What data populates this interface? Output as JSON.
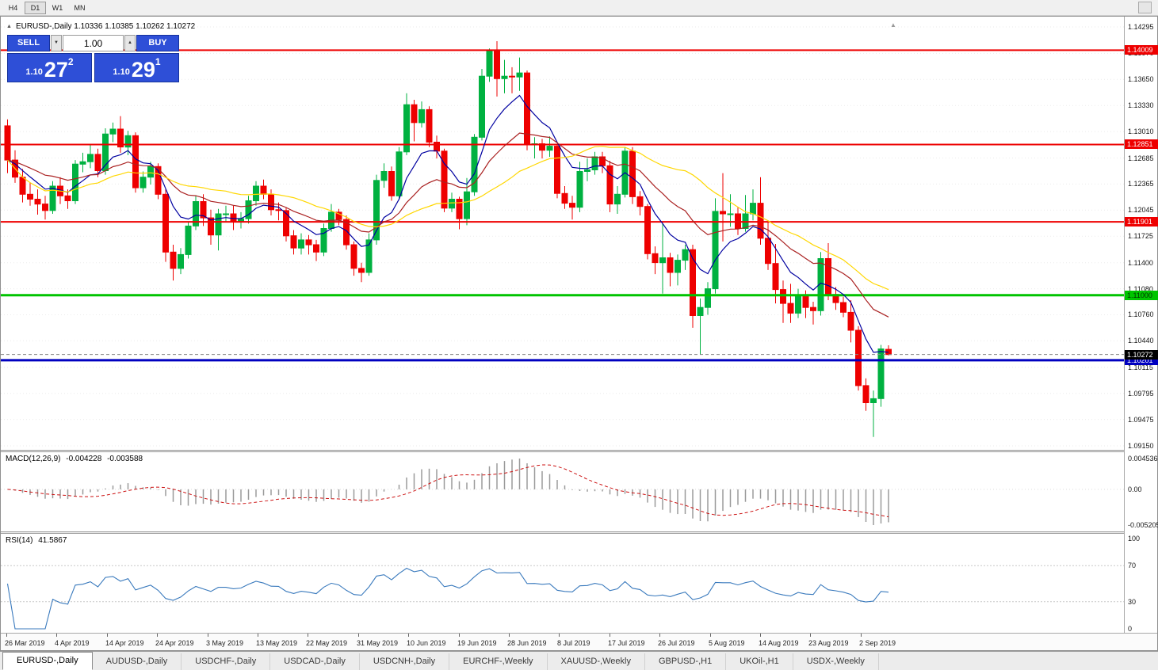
{
  "toolbar": {
    "timeframes": [
      {
        "label": "H4",
        "active": false
      },
      {
        "label": "D1",
        "active": true
      },
      {
        "label": "W1",
        "active": false
      },
      {
        "label": "MN",
        "active": false
      }
    ]
  },
  "chart": {
    "collapse_icon": "▲",
    "shift_marker": "▲",
    "title": "EURUSD-,Daily 1.10336 1.10385 1.10262 1.10272",
    "trade_panel": {
      "sell_label": "SELL",
      "buy_label": "BUY",
      "volume": "1.00",
      "spin_down_icon": "▼",
      "spin_up_icon": "▲",
      "sell_price": {
        "base": "1.10",
        "big": "27",
        "sup": "2"
      },
      "buy_price": {
        "base": "1.10",
        "big": "29",
        "sup": "1"
      }
    },
    "price_ticks": [
      "1.14295",
      "1.13970",
      "1.13650",
      "1.13330",
      "1.13010",
      "1.12685",
      "1.12365",
      "1.12045",
      "1.11725",
      "1.11400",
      "1.11080",
      "1.10760",
      "1.10440",
      "1.10115",
      "1.09795",
      "1.09475",
      "1.09150"
    ],
    "hlines": [
      {
        "price": 1.14009,
        "label": "1.14009",
        "color": "#ee0000",
        "width": 2,
        "text_color": "#ffffff"
      },
      {
        "price": 1.12851,
        "label": "1.12851",
        "color": "#ee0000",
        "width": 2,
        "text_color": "#ffffff"
      },
      {
        "price": 1.11901,
        "label": "1.11901",
        "color": "#ee0000",
        "width": 2,
        "text_color": "#ffffff"
      },
      {
        "price": 1.11,
        "label": "1.11000",
        "color": "#00c400",
        "width": 3,
        "text_color": "#003300"
      },
      {
        "price": 1.10201,
        "label": "1.10201",
        "color": "#0000c0",
        "width": 3,
        "text_color": "#ffffff"
      }
    ],
    "current_price": {
      "value": 1.10272,
      "label": "1.10272"
    },
    "macd": {
      "name": "MACD(12,26,9)",
      "value_main": "-0.004228",
      "value_signal": "-0.003588",
      "scale": [
        "0.004536",
        "0.00",
        "-0.005205"
      ]
    },
    "rsi": {
      "name": "RSI(14)",
      "value": "41.5867",
      "levels": [
        {
          "label": "100",
          "value": 100
        },
        {
          "label": "70",
          "value": 70
        },
        {
          "label": "30",
          "value": 30
        },
        {
          "label": "0",
          "value": 0
        }
      ]
    }
  },
  "tabs": [
    {
      "label": "EURUSD-,Daily",
      "active": true
    },
    {
      "label": "AUDUSD-,Daily",
      "active": false
    },
    {
      "label": "USDCHF-,Daily",
      "active": false
    },
    {
      "label": "USDCAD-,Daily",
      "active": false
    },
    {
      "label": "USDCNH-,Daily",
      "active": false
    },
    {
      "label": "EURCHF-,Weekly",
      "active": false
    },
    {
      "label": "XAUUSD-,Weekly",
      "active": false
    },
    {
      "label": "GBPUSD-,H1",
      "active": false
    },
    {
      "label": "UKOil-,H1",
      "active": false
    },
    {
      "label": "USDX-,Weekly",
      "active": false
    }
  ],
  "chart_data": {
    "type": "candlestick",
    "symbol": "EURUSD-",
    "timeframe": "Daily",
    "y_range": [
      1.0915,
      1.14295
    ],
    "x_labels": [
      "26 Mar 2019",
      "4 Apr 2019",
      "14 Apr 2019",
      "24 Apr 2019",
      "3 May 2019",
      "13 May 2019",
      "22 May 2019",
      "31 May 2019",
      "10 Jun 2019",
      "19 Jun 2019",
      "28 Jun 2019",
      "8 Jul 2019",
      "17 Jul 2019",
      "26 Jul 2019",
      "5 Aug 2019",
      "14 Aug 2019",
      "23 Aug 2019",
      "2 Sep 2019"
    ],
    "levels": {
      "resistance": [
        1.14009,
        1.12851,
        1.11901
      ],
      "support_green": 1.11,
      "support_blue": 1.10201,
      "last_price": 1.10272
    },
    "moving_averages": [
      {
        "name": "fast-ma",
        "period": 8,
        "method": "ema",
        "color": "#0000a0"
      },
      {
        "name": "medium-ma",
        "period": 20,
        "method": "ema",
        "color": "#aa2222"
      },
      {
        "name": "slow-ma",
        "period": 30,
        "method": "sma",
        "color": "#ffd700"
      }
    ],
    "indicators": [
      {
        "type": "macd",
        "fast": 12,
        "slow": 26,
        "signal": 9,
        "last_main": -0.004228,
        "last_signal": -0.003588
      },
      {
        "type": "rsi",
        "period": 14,
        "last_value": 41.5867
      }
    ],
    "candles": [
      [
        1.1308,
        1.1316,
        1.125,
        1.1266
      ],
      [
        1.1266,
        1.1278,
        1.1238,
        1.1245
      ],
      [
        1.1245,
        1.1255,
        1.1214,
        1.1224
      ],
      [
        1.1224,
        1.1238,
        1.121,
        1.1218
      ],
      [
        1.1218,
        1.123,
        1.1199,
        1.1212
      ],
      [
        1.1212,
        1.1222,
        1.1193,
        1.1204
      ],
      [
        1.1204,
        1.124,
        1.12,
        1.1234
      ],
      [
        1.1234,
        1.1245,
        1.1212,
        1.1222
      ],
      [
        1.1222,
        1.123,
        1.1206,
        1.1216
      ],
      [
        1.1216,
        1.1266,
        1.1212,
        1.1261
      ],
      [
        1.1261,
        1.1275,
        1.1251,
        1.1264
      ],
      [
        1.1264,
        1.1285,
        1.1256,
        1.1273
      ],
      [
        1.1273,
        1.128,
        1.1245,
        1.1253
      ],
      [
        1.1253,
        1.1305,
        1.1248,
        1.1298
      ],
      [
        1.1298,
        1.1312,
        1.1288,
        1.1304
      ],
      [
        1.1304,
        1.132,
        1.1275,
        1.1282
      ],
      [
        1.1282,
        1.1302,
        1.1272,
        1.1296
      ],
      [
        1.1296,
        1.13,
        1.1226,
        1.1232
      ],
      [
        1.1232,
        1.1252,
        1.1226,
        1.1245
      ],
      [
        1.1245,
        1.1264,
        1.1236,
        1.1258
      ],
      [
        1.1258,
        1.1262,
        1.1218,
        1.1224
      ],
      [
        1.1224,
        1.123,
        1.1141,
        1.1153
      ],
      [
        1.1153,
        1.1162,
        1.1118,
        1.1133
      ],
      [
        1.1133,
        1.1158,
        1.1126,
        1.115
      ],
      [
        1.115,
        1.119,
        1.1145,
        1.1185
      ],
      [
        1.1185,
        1.1222,
        1.118,
        1.1215
      ],
      [
        1.1215,
        1.1224,
        1.1185,
        1.1195
      ],
      [
        1.1195,
        1.1205,
        1.1162,
        1.1174
      ],
      [
        1.1174,
        1.1206,
        1.1155,
        1.12
      ],
      [
        1.12,
        1.121,
        1.119,
        1.12
      ],
      [
        1.12,
        1.121,
        1.118,
        1.119
      ],
      [
        1.119,
        1.1202,
        1.1182,
        1.1194
      ],
      [
        1.1194,
        1.1222,
        1.1188,
        1.1216
      ],
      [
        1.1216,
        1.124,
        1.121,
        1.1234
      ],
      [
        1.1234,
        1.1242,
        1.1218,
        1.1224
      ],
      [
        1.1224,
        1.123,
        1.1198,
        1.1205
      ],
      [
        1.1205,
        1.1214,
        1.1192,
        1.1204
      ],
      [
        1.1204,
        1.1208,
        1.1166,
        1.1173
      ],
      [
        1.1173,
        1.118,
        1.115,
        1.1158
      ],
      [
        1.1158,
        1.1176,
        1.115,
        1.1168
      ],
      [
        1.1168,
        1.1174,
        1.115,
        1.1162
      ],
      [
        1.1162,
        1.1168,
        1.1142,
        1.1153
      ],
      [
        1.1153,
        1.1188,
        1.1148,
        1.1182
      ],
      [
        1.1182,
        1.1212,
        1.1178,
        1.1202
      ],
      [
        1.1202,
        1.1206,
        1.1186,
        1.1193
      ],
      [
        1.1193,
        1.1198,
        1.1156,
        1.1162
      ],
      [
        1.1162,
        1.1166,
        1.1124,
        1.1133
      ],
      [
        1.1133,
        1.114,
        1.1116,
        1.1128
      ],
      [
        1.1128,
        1.1176,
        1.1124,
        1.1168
      ],
      [
        1.1168,
        1.1248,
        1.1162,
        1.1241
      ],
      [
        1.1241,
        1.1262,
        1.1232,
        1.1252
      ],
      [
        1.1252,
        1.1258,
        1.1216,
        1.1222
      ],
      [
        1.1222,
        1.1282,
        1.1218,
        1.1276
      ],
      [
        1.1276,
        1.1348,
        1.1272,
        1.1334
      ],
      [
        1.1334,
        1.134,
        1.1289,
        1.1312
      ],
      [
        1.1312,
        1.1338,
        1.1306,
        1.1328
      ],
      [
        1.1328,
        1.1332,
        1.1282,
        1.1288
      ],
      [
        1.1288,
        1.1296,
        1.1268,
        1.1277
      ],
      [
        1.1277,
        1.128,
        1.1202,
        1.1207
      ],
      [
        1.1207,
        1.1226,
        1.1202,
        1.1218
      ],
      [
        1.1218,
        1.1221,
        1.1181,
        1.1194
      ],
      [
        1.1194,
        1.1244,
        1.1186,
        1.1227
      ],
      [
        1.1227,
        1.1298,
        1.1222,
        1.1294
      ],
      [
        1.1294,
        1.1378,
        1.129,
        1.1369
      ],
      [
        1.1369,
        1.1403,
        1.1362,
        1.14
      ],
      [
        1.14,
        1.1412,
        1.1344,
        1.1366
      ],
      [
        1.1366,
        1.1389,
        1.1348,
        1.1369
      ],
      [
        1.1369,
        1.138,
        1.1348,
        1.1368
      ],
      [
        1.1368,
        1.1392,
        1.1351,
        1.1373
      ],
      [
        1.1373,
        1.1376,
        1.1278,
        1.1285
      ],
      [
        1.1285,
        1.1294,
        1.1268,
        1.1286
      ],
      [
        1.1286,
        1.1292,
        1.1268,
        1.1278
      ],
      [
        1.1278,
        1.1295,
        1.127,
        1.1283
      ],
      [
        1.1283,
        1.1286,
        1.1219,
        1.1225
      ],
      [
        1.1225,
        1.1234,
        1.1206,
        1.1213
      ],
      [
        1.1213,
        1.1222,
        1.1193,
        1.1208
      ],
      [
        1.1208,
        1.1264,
        1.1202,
        1.1252
      ],
      [
        1.1252,
        1.1268,
        1.124,
        1.1254
      ],
      [
        1.1254,
        1.1276,
        1.1248,
        1.127
      ],
      [
        1.127,
        1.1276,
        1.125,
        1.1259
      ],
      [
        1.1259,
        1.1265,
        1.1202,
        1.1212
      ],
      [
        1.1212,
        1.1234,
        1.12,
        1.1224
      ],
      [
        1.1224,
        1.1282,
        1.122,
        1.1277
      ],
      [
        1.1277,
        1.1282,
        1.1212,
        1.1221
      ],
      [
        1.1221,
        1.1228,
        1.1198,
        1.1209
      ],
      [
        1.1209,
        1.1212,
        1.1144,
        1.1151
      ],
      [
        1.1151,
        1.116,
        1.1126,
        1.114
      ],
      [
        1.114,
        1.1188,
        1.1102,
        1.1146
      ],
      [
        1.1146,
        1.1152,
        1.1111,
        1.1128
      ],
      [
        1.1128,
        1.115,
        1.1112,
        1.1143
      ],
      [
        1.1143,
        1.1162,
        1.1131,
        1.1156
      ],
      [
        1.1156,
        1.1162,
        1.106,
        1.1075
      ],
      [
        1.1075,
        1.1096,
        1.1027,
        1.1085
      ],
      [
        1.1085,
        1.1116,
        1.1076,
        1.1108
      ],
      [
        1.1108,
        1.1219,
        1.1102,
        1.1203
      ],
      [
        1.1203,
        1.125,
        1.1166,
        1.12
      ],
      [
        1.12,
        1.1224,
        1.1184,
        1.12
      ],
      [
        1.12,
        1.1208,
        1.1174,
        1.1182
      ],
      [
        1.1182,
        1.1223,
        1.1178,
        1.12
      ],
      [
        1.12,
        1.123,
        1.1192,
        1.1213
      ],
      [
        1.1213,
        1.1245,
        1.1162,
        1.117
      ],
      [
        1.117,
        1.1192,
        1.1131,
        1.1139
      ],
      [
        1.1139,
        1.1163,
        1.109,
        1.1107
      ],
      [
        1.1107,
        1.1118,
        1.1066,
        1.109
      ],
      [
        1.109,
        1.1114,
        1.1066,
        1.1078
      ],
      [
        1.1078,
        1.1108,
        1.1072,
        1.11
      ],
      [
        1.11,
        1.1106,
        1.1072,
        1.1085
      ],
      [
        1.1085,
        1.1092,
        1.1064,
        1.1081
      ],
      [
        1.1081,
        1.1153,
        1.1075,
        1.1145
      ],
      [
        1.1145,
        1.1164,
        1.1094,
        1.1101
      ],
      [
        1.1101,
        1.111,
        1.1082,
        1.1091
      ],
      [
        1.1091,
        1.1098,
        1.1073,
        1.1079
      ],
      [
        1.1079,
        1.1094,
        1.1042,
        1.1057
      ],
      [
        1.1057,
        1.1062,
        1.0983,
        1.0989
      ],
      [
        1.0989,
        1.0998,
        1.0958,
        1.0968
      ],
      [
        1.0968,
        1.0983,
        1.0926,
        1.0973
      ],
      [
        1.0973,
        1.1039,
        1.0963,
        1.1034
      ],
      [
        1.10336,
        1.10385,
        1.10262,
        1.10272
      ]
    ]
  }
}
